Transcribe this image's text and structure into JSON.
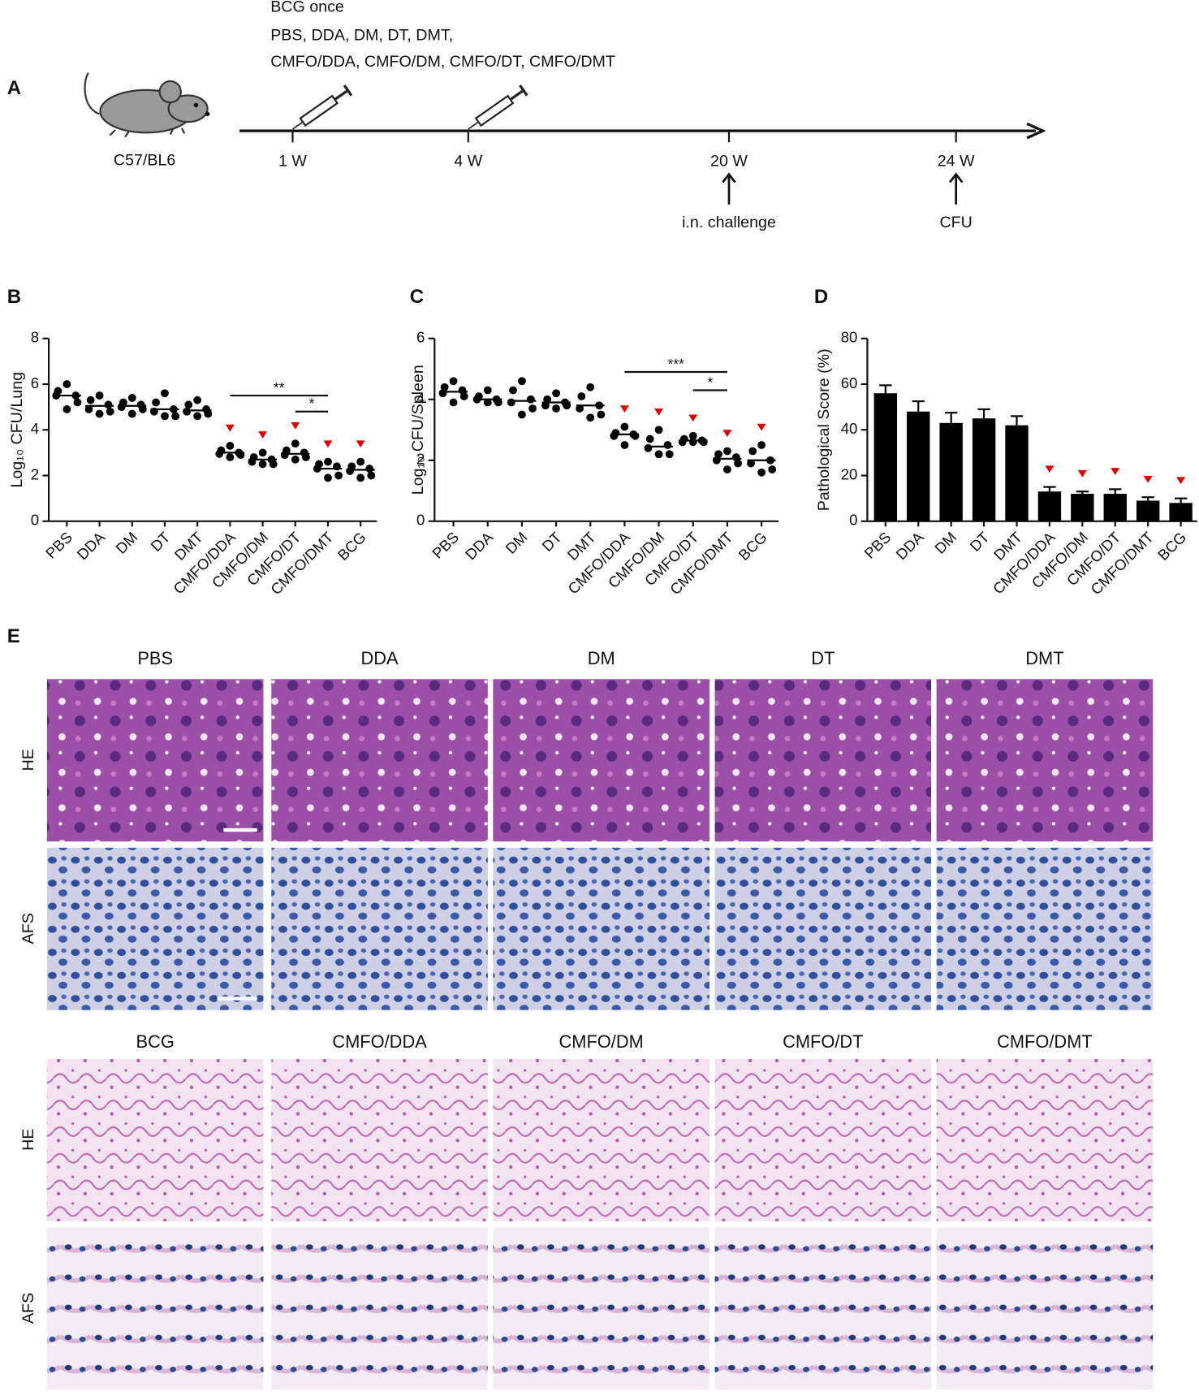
{
  "timeline": {
    "panel": "A",
    "header_lines": [
      "BCG once",
      "PBS, DDA, DM, DT, DMT,",
      "CMFO/DDA, CMFO/DM, CMFO/DT, CMFO/DMT"
    ],
    "strain": "C57/BL6",
    "timepoints": [
      "1 W",
      "4 W",
      "20 W",
      "24 W"
    ],
    "events": [
      "i.n. challenge",
      "CFU"
    ]
  },
  "chart_data": [
    {
      "type": "dot",
      "panel": "B",
      "ylabel": "Log₁₀ CFU/Lung",
      "categories": [
        "PBS",
        "DDA",
        "DM",
        "DT",
        "DMT",
        "CMFO/DDA",
        "CMFO/DM",
        "CMFO/DT",
        "CMFO/DMT",
        "BCG"
      ],
      "points": [
        [
          6.0,
          5.7,
          5.5,
          5.5,
          5.2,
          4.9
        ],
        [
          5.5,
          5.3,
          5.1,
          4.9,
          4.8,
          4.7
        ],
        [
          5.4,
          5.2,
          5.1,
          5.0,
          4.9,
          4.7
        ],
        [
          5.6,
          5.2,
          4.9,
          4.8,
          4.6,
          4.6
        ],
        [
          5.3,
          5.1,
          4.9,
          4.8,
          4.7,
          4.6
        ],
        [
          3.3,
          3.1,
          3.0,
          2.95,
          2.9,
          2.8
        ],
        [
          3.0,
          2.8,
          2.7,
          2.6,
          2.5,
          2.5
        ],
        [
          3.4,
          3.1,
          3.0,
          2.9,
          2.8,
          2.7
        ],
        [
          2.6,
          2.5,
          2.4,
          2.3,
          2.0,
          1.9
        ],
        [
          2.6,
          2.4,
          2.3,
          2.2,
          2.0,
          1.9
        ]
      ],
      "means": [
        5.5,
        5.05,
        5.05,
        4.9,
        4.85,
        3.0,
        2.7,
        2.95,
        2.3,
        2.25
      ],
      "color": "#000000",
      "ylim": [
        0,
        8
      ],
      "yticks": [
        0,
        2,
        4,
        6,
        8
      ],
      "flagged": [
        false,
        false,
        false,
        false,
        false,
        true,
        true,
        true,
        true,
        true
      ],
      "flag_color": "#e00000",
      "brackets": [
        {
          "from": 5,
          "to": 8,
          "y": 5.5,
          "label": "**"
        },
        {
          "from": 7,
          "to": 8,
          "y": 4.8,
          "label": "*"
        }
      ]
    },
    {
      "type": "dot",
      "panel": "C",
      "ylabel": "Log₁₀ CFU/Spleen",
      "categories": [
        "PBS",
        "DDA",
        "DM",
        "DT",
        "DMT",
        "CMFO/DDA",
        "CMFO/DM",
        "CMFO/DT",
        "CMFO/DMT",
        "BCG"
      ],
      "points": [
        [
          4.6,
          4.4,
          4.3,
          4.2,
          4.1,
          3.9
        ],
        [
          4.3,
          4.1,
          4.0,
          4.0,
          3.9,
          3.9
        ],
        [
          4.6,
          4.3,
          4.0,
          3.9,
          3.7,
          3.5
        ],
        [
          4.2,
          4.0,
          3.9,
          3.8,
          3.8,
          3.7
        ],
        [
          4.4,
          4.1,
          3.8,
          3.7,
          3.5,
          3.4
        ],
        [
          3.1,
          2.9,
          2.85,
          2.8,
          2.8,
          2.5
        ],
        [
          3.0,
          2.7,
          2.5,
          2.4,
          2.2,
          2.2
        ],
        [
          2.8,
          2.7,
          2.65,
          2.6,
          2.6,
          2.6
        ],
        [
          2.3,
          2.2,
          2.1,
          2.0,
          1.9,
          1.7
        ],
        [
          2.5,
          2.3,
          2.0,
          1.9,
          1.7,
          1.6
        ]
      ],
      "means": [
        4.25,
        4.0,
        3.95,
        3.9,
        3.8,
        2.85,
        2.45,
        2.65,
        2.05,
        2.0
      ],
      "color": "#000000",
      "ylim": [
        0,
        6
      ],
      "yticks": [
        0,
        2,
        4,
        6
      ],
      "flagged": [
        false,
        false,
        false,
        false,
        false,
        true,
        true,
        true,
        true,
        true
      ],
      "flag_color": "#e00000",
      "brackets": [
        {
          "from": 5,
          "to": 8,
          "y": 4.9,
          "label": "***"
        },
        {
          "from": 7,
          "to": 8,
          "y": 4.3,
          "label": "*"
        }
      ]
    },
    {
      "type": "bar",
      "panel": "D",
      "ylabel": "Pathological Score (%)",
      "categories": [
        "PBS",
        "DDA",
        "DM",
        "DT",
        "DMT",
        "CMFO/DDA",
        "CMFO/DM",
        "CMFO/DT",
        "CMFO/DMT",
        "BCG"
      ],
      "values": [
        56,
        48,
        43,
        45,
        42,
        13,
        12,
        12,
        9,
        8
      ],
      "errors": [
        3.5,
        4.5,
        4.5,
        4,
        4,
        2,
        1,
        2,
        1.5,
        2
      ],
      "color": "#000000",
      "ylim": [
        0,
        80
      ],
      "yticks": [
        0,
        20,
        40,
        60,
        80
      ],
      "flagged": [
        false,
        false,
        false,
        false,
        false,
        true,
        true,
        true,
        true,
        true
      ],
      "flag_color": "#e00000"
    }
  ],
  "histology": {
    "panel": "E",
    "row_labels": [
      "HE",
      "AFS"
    ],
    "groups_top": [
      "PBS",
      "DDA",
      "DM",
      "DT",
      "DMT"
    ],
    "groups_bottom": [
      "BCG",
      "CMFO/DDA",
      "CMFO/DM",
      "CMFO/DT",
      "CMFO/DMT"
    ]
  }
}
